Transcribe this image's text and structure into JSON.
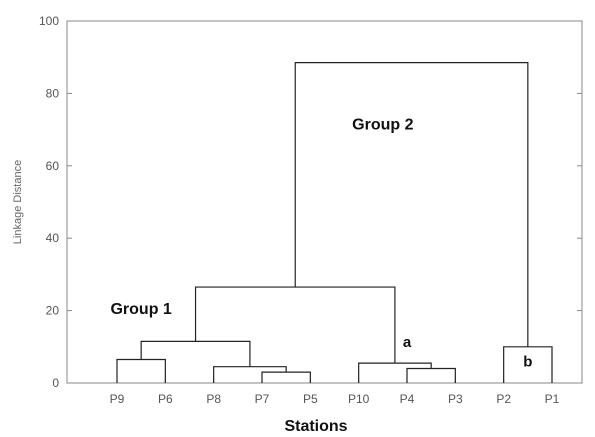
{
  "chart_data": {
    "type": "dendrogram",
    "title": "",
    "xlabel": "Stations",
    "ylabel": "Linkage Distance",
    "ylim": [
      0,
      100
    ],
    "yticks": [
      0,
      20,
      40,
      60,
      80,
      100
    ],
    "grid": false,
    "leaves": [
      "P9",
      "P6",
      "P8",
      "P7",
      "P5",
      "P10",
      "P4",
      "P3",
      "P2",
      "P1"
    ],
    "merges": [
      {
        "left": "P7",
        "right": "P5",
        "height": 3
      },
      {
        "left": "P4",
        "right": "P3",
        "height": 4
      },
      {
        "left": "P8",
        "right": "P7-P5",
        "height": 4.5
      },
      {
        "left": "P10",
        "right": "P4-P3",
        "height": 5.5
      },
      {
        "left": "P9",
        "right": "P6",
        "height": 6.5
      },
      {
        "left": "P2",
        "right": "P1",
        "height": 10
      },
      {
        "left": "P9-P6",
        "right": "P8-P7-P5",
        "height": 11.5
      },
      {
        "left": "P9-P6-P8-P7-P5",
        "right": "P10-P4-P3",
        "height": 26.5
      },
      {
        "left": "P9-P6-P8-P7-P5-P10-P4-P3",
        "right": "P2-P1",
        "height": 88.5
      }
    ],
    "annotations": [
      {
        "text": "Group 2",
        "x_between": [
          "P10",
          "P4"
        ],
        "y": 70
      },
      {
        "text": "Group 1",
        "x_between": [
          "P9",
          "P6"
        ],
        "y": 19
      },
      {
        "text": "a",
        "x_between": [
          "P4",
          "P4"
        ],
        "y": 10
      },
      {
        "text": "b",
        "x_between": [
          "P2",
          "P1"
        ],
        "y": 4.5
      }
    ]
  }
}
